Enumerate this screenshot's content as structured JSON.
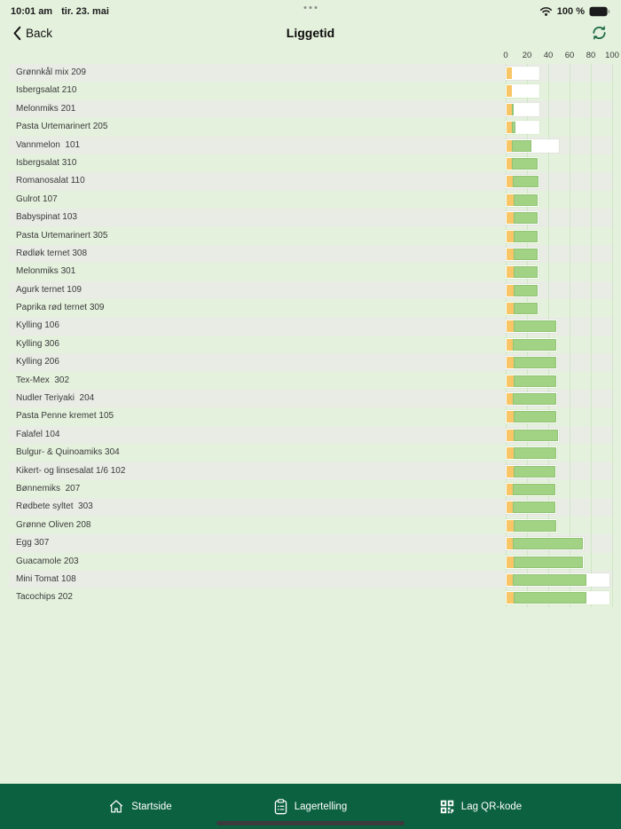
{
  "status_bar": {
    "time": "10:01 am",
    "date": "tir. 23. mai",
    "battery_percent": "100 %"
  },
  "nav": {
    "back_label": "Back",
    "title": "Liggetid"
  },
  "colors": {
    "page_bg": "#e4f1dc",
    "stripe": "#e9ece5",
    "grid": "#cfe7c6",
    "bar_yellow": "#f8c667",
    "bar_green": "#a2d385",
    "bar_white": "#ffffff",
    "tab_bar_bg": "#0c6240",
    "accent_green": "#1e6b45",
    "home_indicator": "#3b3b3e"
  },
  "chart_data": {
    "type": "bar",
    "orientation": "horizontal",
    "title": "Liggetid",
    "xlabel": "",
    "ylabel": "",
    "grid": true,
    "legend": null,
    "x_axis": {
      "position": "top",
      "min": 0,
      "max": 100,
      "ticks": [
        0,
        20,
        40,
        60,
        80,
        100
      ]
    },
    "segment_colors": {
      "yellow": "#f8c667",
      "green": "#a2d385",
      "white": "#ffffff"
    },
    "rows": [
      {
        "label": "Grønnkål mix 209",
        "segments": {
          "yellow": 5,
          "green": 0,
          "white": 25
        }
      },
      {
        "label": "Isbergsalat 210",
        "segments": {
          "yellow": 5,
          "green": 0,
          "white": 25
        }
      },
      {
        "label": "Melonmiks 201",
        "segments": {
          "yellow": 5,
          "green": 2,
          "white": 23
        }
      },
      {
        "label": "Pasta Urtemarinert 205",
        "segments": {
          "yellow": 5,
          "green": 3,
          "white": 22
        }
      },
      {
        "label": "Vannmelon  101",
        "segments": {
          "yellow": 5,
          "green": 18,
          "white": 25
        }
      },
      {
        "label": "Isbergsalat 310",
        "segments": {
          "yellow": 5,
          "green": 24,
          "white": 0
        }
      },
      {
        "label": "Romanosalat 110",
        "segments": {
          "yellow": 6,
          "green": 24,
          "white": 0
        }
      },
      {
        "label": "Gulrot 107",
        "segments": {
          "yellow": 7,
          "green": 22,
          "white": 0
        }
      },
      {
        "label": "Babyspinat 103",
        "segments": {
          "yellow": 7,
          "green": 22,
          "white": 0
        }
      },
      {
        "label": "Pasta Urtemarinert 305",
        "segments": {
          "yellow": 7,
          "green": 22,
          "white": 0
        }
      },
      {
        "label": "Rødløk ternet 308",
        "segments": {
          "yellow": 7,
          "green": 22,
          "white": 0
        }
      },
      {
        "label": "Melonmiks 301",
        "segments": {
          "yellow": 7,
          "green": 22,
          "white": 0
        }
      },
      {
        "label": "Agurk ternet 109",
        "segments": {
          "yellow": 7,
          "green": 22,
          "white": 0
        }
      },
      {
        "label": "Paprika rød ternet 309",
        "segments": {
          "yellow": 7,
          "green": 22,
          "white": 0
        }
      },
      {
        "label": "Kylling 106",
        "segments": {
          "yellow": 7,
          "green": 40,
          "white": 0
        }
      },
      {
        "label": "Kylling 306",
        "segments": {
          "yellow": 6,
          "green": 41,
          "white": 0
        }
      },
      {
        "label": "Kylling 206",
        "segments": {
          "yellow": 7,
          "green": 40,
          "white": 0
        }
      },
      {
        "label": "Tex-Mex  302",
        "segments": {
          "yellow": 7,
          "green": 40,
          "white": 0
        }
      },
      {
        "label": "Nudler Teriyaki  204",
        "segments": {
          "yellow": 6,
          "green": 41,
          "white": 0
        }
      },
      {
        "label": "Pasta Penne kremet 105",
        "segments": {
          "yellow": 7,
          "green": 40,
          "white": 0
        }
      },
      {
        "label": "Falafel 104",
        "segments": {
          "yellow": 7,
          "green": 41,
          "white": 0
        }
      },
      {
        "label": "Bulgur- & Quinoamiks 304",
        "segments": {
          "yellow": 7,
          "green": 40,
          "white": 0
        }
      },
      {
        "label": "Kikert- og linsesalat 1/6 102",
        "segments": {
          "yellow": 7,
          "green": 39,
          "white": 0
        }
      },
      {
        "label": "Bønnemiks  207",
        "segments": {
          "yellow": 6,
          "green": 40,
          "white": 0
        }
      },
      {
        "label": "Rødbete syltet  303",
        "segments": {
          "yellow": 6,
          "green": 40,
          "white": 0
        }
      },
      {
        "label": "Grønne Oliven 208",
        "segments": {
          "yellow": 7,
          "green": 40,
          "white": 0
        }
      },
      {
        "label": "Egg 307",
        "segments": {
          "yellow": 6,
          "green": 66,
          "white": 0
        }
      },
      {
        "label": "Guacamole 203",
        "segments": {
          "yellow": 7,
          "green": 65,
          "white": 0
        }
      },
      {
        "label": "Mini Tomat 108",
        "segments": {
          "yellow": 6,
          "green": 69,
          "white": 21
        }
      },
      {
        "label": "Tacochips 202",
        "segments": {
          "yellow": 7,
          "green": 68,
          "white": 21
        }
      }
    ]
  },
  "tab_bar": {
    "items": [
      {
        "label": "Startside",
        "icon": "home-icon",
        "active": false
      },
      {
        "label": "Lagertelling",
        "icon": "clipboard-icon",
        "active": true
      },
      {
        "label": "Lag QR-kode",
        "icon": "qr-icon",
        "active": false
      }
    ]
  }
}
